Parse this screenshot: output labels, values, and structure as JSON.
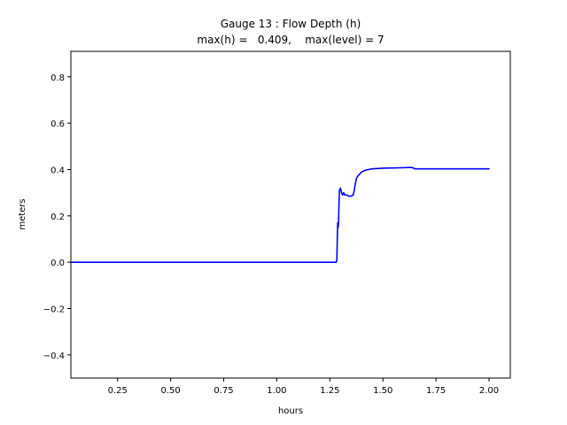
{
  "chart_data": {
    "type": "line",
    "title": "Gauge 13 : Flow Depth (h)",
    "subtitle": "max(h) =   0.409,    max(level) = 7",
    "xlabel": "hours",
    "ylabel": "meters",
    "xlim": [
      0.03,
      2.1
    ],
    "ylim": [
      -0.5,
      0.91
    ],
    "xticks": [
      0.25,
      0.5,
      0.75,
      1.0,
      1.25,
      1.5,
      1.75,
      2.0
    ],
    "xtick_labels": [
      "0.25",
      "0.50",
      "0.75",
      "1.00",
      "1.25",
      "1.50",
      "1.75",
      "2.00"
    ],
    "yticks": [
      -0.4,
      -0.2,
      0.0,
      0.2,
      0.4,
      0.6,
      0.8
    ],
    "ytick_labels": [
      "−0.4",
      "−0.2",
      "0.0",
      "0.2",
      "0.4",
      "0.6",
      "0.8"
    ],
    "grid": false,
    "series": [
      {
        "color": "#0000ff",
        "x": [
          0.03,
          0.5,
          1.0,
          1.28,
          1.283,
          1.285,
          1.287,
          1.289,
          1.291,
          1.293,
          1.295,
          1.3,
          1.305,
          1.31,
          1.315,
          1.32,
          1.33,
          1.34,
          1.35,
          1.36,
          1.365,
          1.37,
          1.375,
          1.38,
          1.39,
          1.4,
          1.42,
          1.45,
          1.5,
          1.55,
          1.6,
          1.63,
          1.64,
          1.65,
          1.7,
          1.8,
          1.9,
          2.0
        ],
        "y": [
          0.0,
          0.0,
          0.0,
          0.0,
          0.01,
          0.1,
          0.17,
          0.15,
          0.17,
          0.25,
          0.31,
          0.32,
          0.3,
          0.29,
          0.3,
          0.29,
          0.29,
          0.285,
          0.285,
          0.29,
          0.31,
          0.34,
          0.36,
          0.37,
          0.38,
          0.39,
          0.398,
          0.403,
          0.406,
          0.407,
          0.408,
          0.409,
          0.408,
          0.403,
          0.403,
          0.403,
          0.403,
          0.403
        ]
      }
    ]
  }
}
